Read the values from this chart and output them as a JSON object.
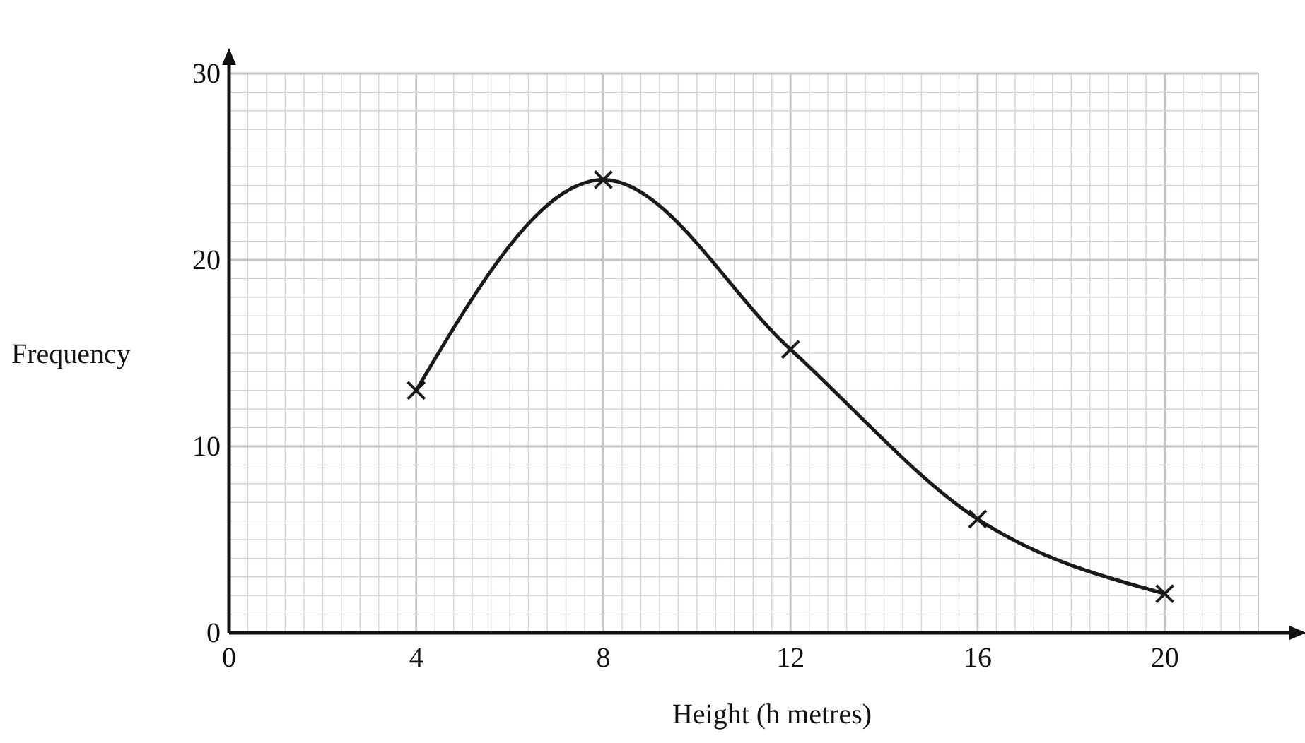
{
  "chart_data": {
    "type": "line",
    "xlabel": "Height (h metres)",
    "ylabel": "Frequency",
    "x": [
      4,
      8,
      12,
      16,
      20
    ],
    "series": [
      {
        "color": "#1a1a1a",
        "values": [
          13,
          24.3,
          15.2,
          6.1,
          2.1
        ]
      }
    ],
    "xlim": [
      0,
      22
    ],
    "xticks": [
      0,
      4,
      8,
      12,
      16,
      20
    ],
    "ylim": [
      0,
      30
    ],
    "yticks": [
      0,
      10,
      20,
      30
    ],
    "grid": true,
    "marker": "cross",
    "line_style": "solid"
  }
}
